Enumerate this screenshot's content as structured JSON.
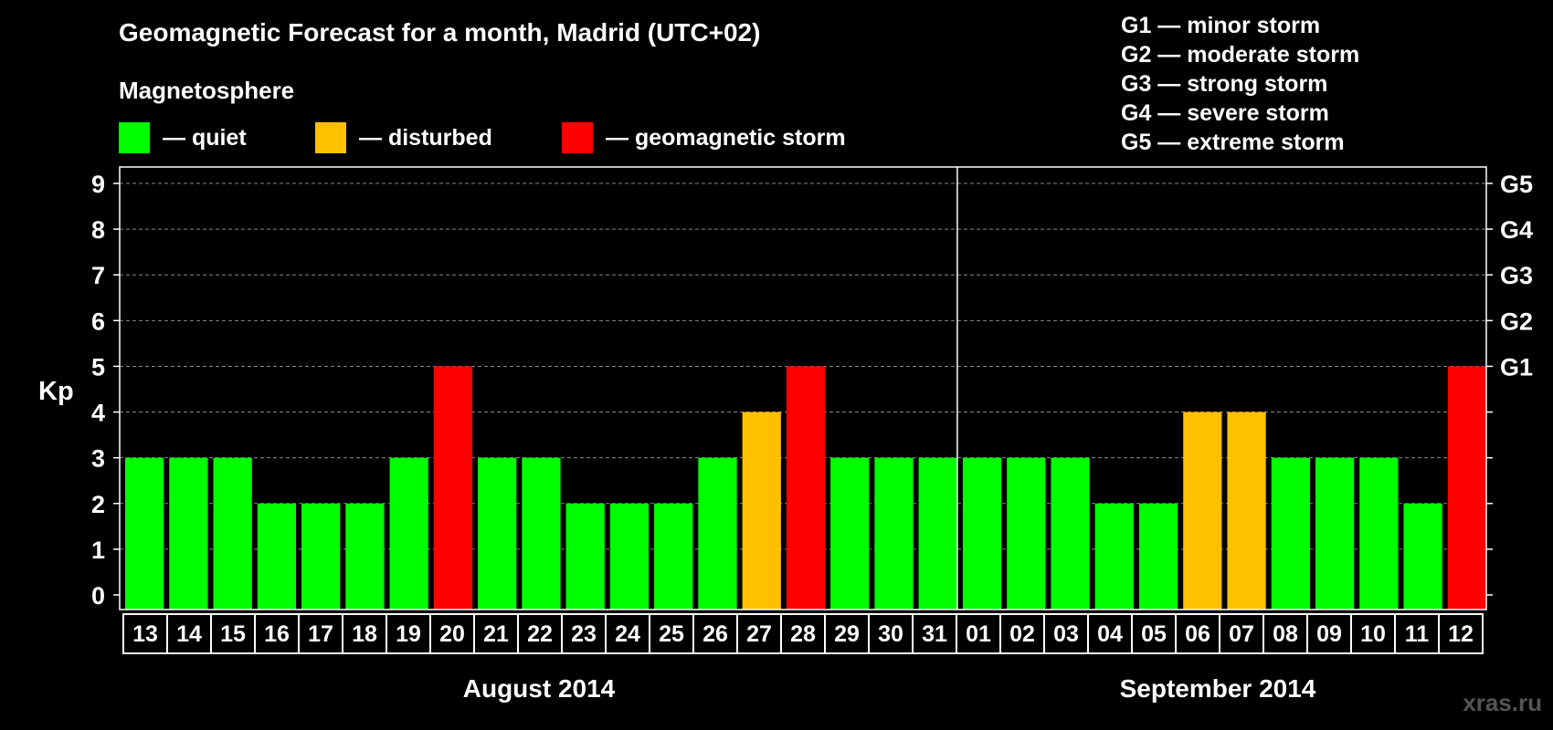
{
  "chart_data": {
    "type": "bar",
    "title": "Geomagnetic Forecast for a month, Madrid (UTC+02)",
    "ylabel": "Kp",
    "ylim": [
      0,
      9
    ],
    "yticks": [
      "0",
      "1",
      "2",
      "3",
      "4",
      "5",
      "6",
      "7",
      "8",
      "9"
    ],
    "right_labels": [
      {
        "kp": 5,
        "label": "G1"
      },
      {
        "kp": 6,
        "label": "G2"
      },
      {
        "kp": 7,
        "label": "G3"
      },
      {
        "kp": 8,
        "label": "G4"
      },
      {
        "kp": 9,
        "label": "G5"
      }
    ],
    "magnetosphere_label": "Magnetosphere",
    "legend": [
      {
        "label": "— quiet",
        "color": "#00ff00"
      },
      {
        "label": "— disturbed",
        "color": "#ffc000"
      },
      {
        "label": "— geomagnetic storm",
        "color": "#ff0000"
      }
    ],
    "storm_levels": [
      "G1 — minor storm",
      "G2 — moderate storm",
      "G3 — strong storm",
      "G4 — severe storm",
      "G5 — extreme storm"
    ],
    "months": [
      {
        "label": "August 2014",
        "days": 19
      },
      {
        "label": "September 2014",
        "days": 12
      }
    ],
    "categories": [
      "13",
      "14",
      "15",
      "16",
      "17",
      "18",
      "19",
      "20",
      "21",
      "22",
      "23",
      "24",
      "25",
      "26",
      "27",
      "28",
      "29",
      "30",
      "31",
      "01",
      "02",
      "03",
      "04",
      "05",
      "06",
      "07",
      "08",
      "09",
      "10",
      "11",
      "12"
    ],
    "values": [
      3,
      3,
      3,
      2,
      2,
      2,
      3,
      5,
      3,
      3,
      2,
      2,
      2,
      3,
      4,
      5,
      3,
      3,
      3,
      3,
      3,
      3,
      2,
      2,
      4,
      4,
      3,
      3,
      3,
      2,
      5
    ],
    "colors": {
      "quiet": "#00ff00",
      "disturbed": "#ffc000",
      "storm": "#ff0000"
    },
    "grid": true,
    "legend_position": "top"
  },
  "watermark": "xras.ru"
}
